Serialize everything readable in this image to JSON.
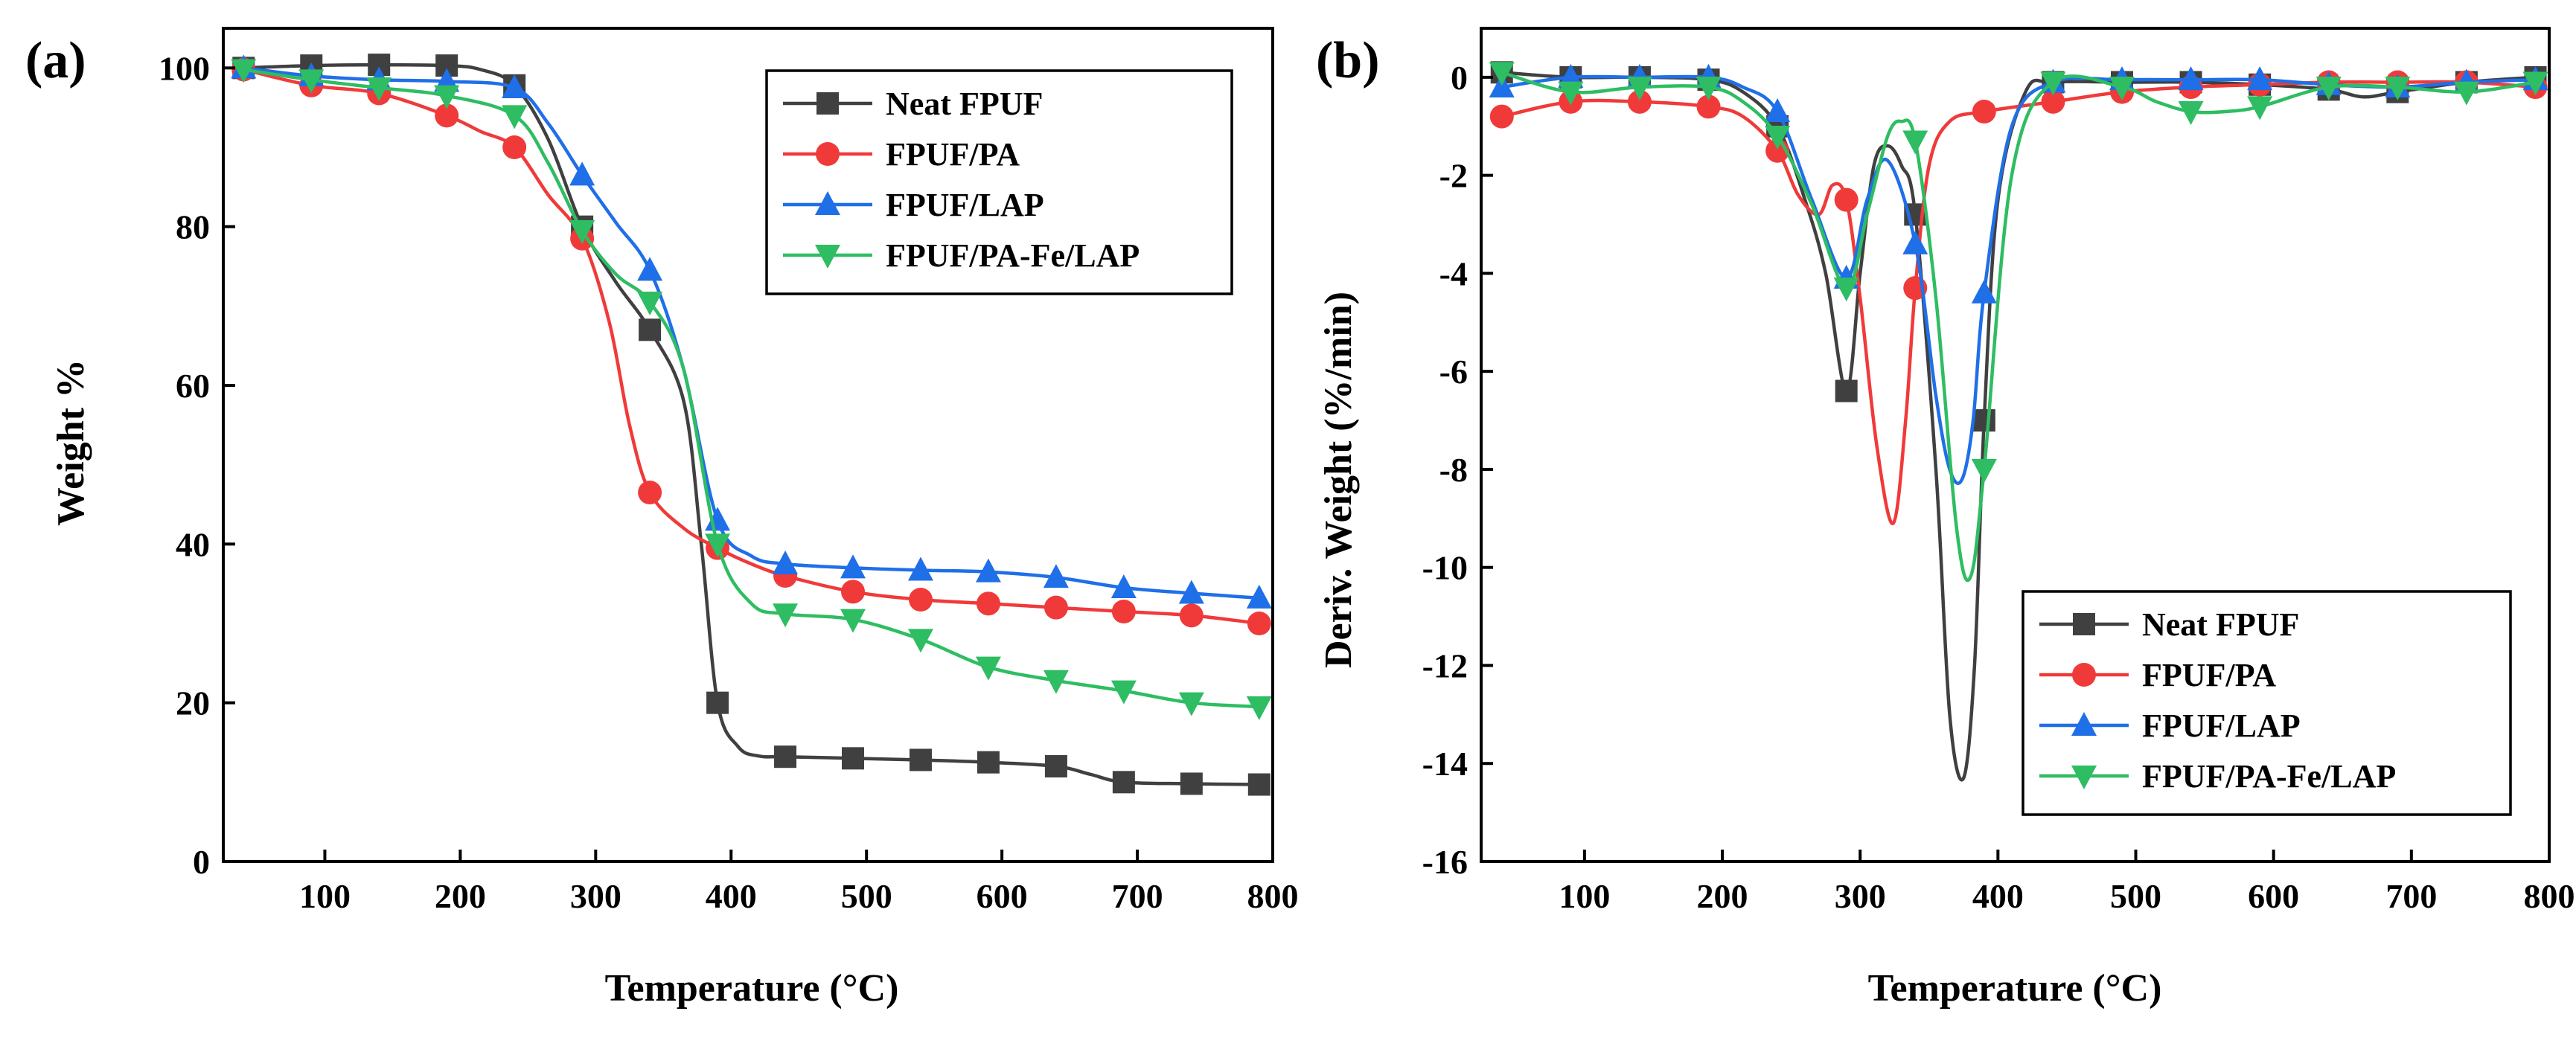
{
  "figure": {
    "colors": {
      "Neat FPUF": "#404040",
      "FPUF/PA": "#f03a3a",
      "FPUF/LAP": "#1f6fe8",
      "FPUF/PA-Fe/LAP": "#2ebd62"
    },
    "markers": {
      "Neat FPUF": "square",
      "FPUF/PA": "circle",
      "FPUF/LAP": "triangle-up",
      "FPUF/PA-Fe/LAP": "triangle-down"
    }
  },
  "chart_data": [
    {
      "type": "line",
      "panel": "(a)",
      "title": "",
      "xlabel": "Temperature (°C)",
      "ylabel": "Weight %",
      "xlim": [
        25,
        800
      ],
      "ylim": [
        0,
        105
      ],
      "xticks": [
        100,
        200,
        300,
        400,
        500,
        600,
        700,
        800
      ],
      "yticks": [
        0,
        20,
        40,
        60,
        80,
        100
      ],
      "legend_position": "top-right",
      "series": [
        {
          "name": "Neat FPUF",
          "x": [
            40,
            90,
            140,
            190,
            215,
            240,
            265,
            290,
            315,
            340,
            365,
            378,
            390,
            405,
            420,
            440,
            490,
            540,
            590,
            640,
            665,
            690,
            740,
            790
          ],
          "y": [
            100,
            100.3,
            100.4,
            100.3,
            99.8,
            97.8,
            91,
            80,
            73,
            67,
            58,
            40,
            20,
            14.5,
            13.3,
            13.2,
            13,
            12.8,
            12.5,
            12,
            11,
            10,
            9.8,
            9.7
          ],
          "markers_x": [
            40,
            90,
            140,
            190,
            240,
            290,
            340,
            390,
            440,
            490,
            540,
            590,
            640,
            690,
            740,
            790
          ],
          "markers_y": [
            100,
            100.3,
            100.4,
            100.3,
            97.8,
            80,
            67,
            20,
            13.2,
            13,
            12.8,
            12.5,
            12,
            10,
            9.8,
            9.7
          ]
        },
        {
          "name": "FPUF/PA",
          "x": [
            40,
            90,
            140,
            190,
            215,
            240,
            265,
            290,
            310,
            325,
            340,
            365,
            390,
            415,
            440,
            490,
            540,
            590,
            640,
            690,
            740,
            790
          ],
          "y": [
            99.8,
            97.8,
            96.8,
            94,
            92,
            90,
            84,
            78.5,
            68,
            55,
            46.5,
            42,
            39.5,
            37.5,
            36,
            34,
            33,
            32.5,
            32,
            31.5,
            31,
            30
          ],
          "markers_x": [
            40,
            90,
            140,
            190,
            240,
            290,
            340,
            390,
            440,
            490,
            540,
            590,
            640,
            690,
            740,
            790
          ],
          "markers_y": [
            99.8,
            97.8,
            96.8,
            94,
            90,
            78.5,
            46.5,
            39.5,
            36,
            34,
            33,
            32.5,
            32,
            31.5,
            31,
            30
          ]
        },
        {
          "name": "FPUF/LAP",
          "x": [
            40,
            90,
            140,
            190,
            240,
            265,
            290,
            315,
            340,
            365,
            390,
            415,
            440,
            490,
            540,
            590,
            640,
            690,
            740,
            790
          ],
          "y": [
            100,
            99,
            98.5,
            98.3,
            97.5,
            93,
            86.5,
            80.5,
            74.5,
            62,
            43,
            38.5,
            37.5,
            37,
            36.7,
            36.5,
            35.8,
            34.5,
            33.8,
            33.2
          ],
          "markers_x": [
            40,
            90,
            140,
            190,
            240,
            290,
            340,
            390,
            440,
            490,
            540,
            590,
            640,
            690,
            740,
            790
          ],
          "markers_y": [
            100,
            99,
            98.5,
            98.3,
            97.5,
            86.5,
            74.5,
            43,
            37.5,
            37,
            36.7,
            36.5,
            35.8,
            34.5,
            33.8,
            33.2
          ]
        },
        {
          "name": "FPUF/PA-Fe/LAP",
          "x": [
            40,
            90,
            140,
            190,
            240,
            265,
            290,
            315,
            340,
            365,
            390,
            415,
            440,
            490,
            540,
            590,
            640,
            690,
            740,
            790
          ],
          "y": [
            99.8,
            98.5,
            97.5,
            96.5,
            94,
            88,
            79.5,
            74,
            70.5,
            62,
            40,
            32.5,
            31.2,
            30.5,
            28,
            24.5,
            22.8,
            21.5,
            20,
            19.5
          ],
          "markers_x": [
            40,
            90,
            140,
            190,
            240,
            290,
            340,
            390,
            440,
            490,
            540,
            590,
            640,
            690,
            740,
            790
          ],
          "markers_y": [
            99.8,
            98.5,
            97.5,
            96.5,
            94,
            79.5,
            70.5,
            40,
            31.2,
            30.5,
            28,
            24.5,
            22.8,
            21.5,
            20,
            19.5
          ]
        }
      ]
    },
    {
      "type": "line",
      "panel": "(b)",
      "title": "",
      "xlabel": "Temperature (°C)",
      "ylabel": "Deriv. Weight (%/min)",
      "xlim": [
        25,
        800
      ],
      "ylim": [
        -16,
        1
      ],
      "xticks": [
        100,
        200,
        300,
        400,
        500,
        600,
        700,
        800
      ],
      "yticks": [
        0,
        -2,
        -4,
        -6,
        -8,
        -10,
        -12,
        -14,
        -16
      ],
      "legend_position": "bottom-right",
      "series": [
        {
          "name": "Neat FPUF",
          "x": [
            40,
            90,
            140,
            190,
            215,
            240,
            260,
            275,
            290,
            300,
            310,
            320,
            330,
            340,
            355,
            365,
            375,
            383,
            390,
            400,
            420,
            440,
            490,
            540,
            590,
            640,
            665,
            690,
            740,
            790
          ],
          "y": [
            0.1,
            0,
            0,
            -0.05,
            -0.3,
            -1,
            -2.5,
            -4,
            -6.4,
            -4,
            -1.8,
            -1.4,
            -1.8,
            -2.8,
            -8,
            -13,
            -14.3,
            -12,
            -7,
            -2.5,
            -0.3,
            -0.1,
            -0.1,
            -0.1,
            -0.15,
            -0.25,
            -0.4,
            -0.3,
            -0.1,
            0
          ],
          "markers_x": [
            40,
            90,
            140,
            190,
            240,
            290,
            340,
            390,
            440,
            490,
            540,
            590,
            640,
            690,
            740,
            790
          ],
          "markers_y": [
            0.1,
            0,
            0,
            -0.05,
            -1,
            -6.4,
            -2.8,
            -7,
            -0.1,
            -0.1,
            -0.1,
            -0.15,
            -0.25,
            -0.3,
            -0.1,
            0
          ]
        },
        {
          "name": "FPUF/PA",
          "x": [
            40,
            90,
            140,
            190,
            215,
            240,
            255,
            270,
            280,
            290,
            300,
            312,
            324,
            333,
            340,
            350,
            365,
            390,
            440,
            490,
            540,
            590,
            640,
            690,
            740,
            790
          ],
          "y": [
            -0.8,
            -0.5,
            -0.5,
            -0.6,
            -0.8,
            -1.5,
            -2.4,
            -2.8,
            -2.2,
            -2.5,
            -4.5,
            -7.5,
            -9.1,
            -7,
            -4.3,
            -1.8,
            -0.9,
            -0.7,
            -0.5,
            -0.3,
            -0.2,
            -0.15,
            -0.1,
            -0.1,
            -0.1,
            -0.2
          ],
          "markers_x": [
            40,
            90,
            140,
            190,
            240,
            290,
            340,
            390,
            440,
            490,
            540,
            590,
            640,
            690,
            740,
            790
          ],
          "markers_y": [
            -0.8,
            -0.5,
            -0.5,
            -0.6,
            -1.5,
            -2.5,
            -4.3,
            -0.7,
            -0.5,
            -0.3,
            -0.2,
            -0.15,
            -0.1,
            -0.1,
            -0.1,
            -0.2
          ]
        },
        {
          "name": "FPUF/LAP",
          "x": [
            40,
            90,
            140,
            190,
            215,
            240,
            265,
            290,
            305,
            320,
            340,
            355,
            365,
            374,
            382,
            390,
            410,
            440,
            490,
            540,
            590,
            640,
            690,
            740,
            790
          ],
          "y": [
            -0.2,
            0,
            0,
            0,
            -0.2,
            -0.7,
            -2.5,
            -4.1,
            -2.5,
            -1.7,
            -3.4,
            -6.5,
            -8,
            -8.2,
            -7,
            -4.4,
            -1,
            -0.1,
            -0.05,
            -0.05,
            -0.05,
            -0.15,
            -0.2,
            -0.1,
            -0.05
          ],
          "markers_x": [
            40,
            90,
            140,
            190,
            240,
            290,
            340,
            390,
            440,
            490,
            540,
            590,
            640,
            690,
            740,
            790
          ],
          "markers_y": [
            -0.2,
            0,
            0,
            0,
            -0.7,
            -4.1,
            -3.4,
            -4.4,
            -0.1,
            -0.05,
            -0.05,
            -0.05,
            -0.15,
            -0.2,
            -0.1,
            -0.05
          ]
        },
        {
          "name": "FPUF/PA-Fe/LAP",
          "x": [
            40,
            90,
            140,
            190,
            215,
            240,
            265,
            290,
            305,
            320,
            330,
            340,
            355,
            370,
            380,
            390,
            410,
            440,
            490,
            515,
            540,
            565,
            590,
            640,
            690,
            740,
            790
          ],
          "y": [
            0.1,
            -0.3,
            -0.2,
            -0.2,
            -0.5,
            -1.2,
            -2.6,
            -4.3,
            -2.8,
            -1.2,
            -0.9,
            -1.3,
            -4.5,
            -9.2,
            -10.2,
            -8,
            -2,
            -0.1,
            -0.2,
            -0.5,
            -0.7,
            -0.7,
            -0.6,
            -0.2,
            -0.2,
            -0.3,
            -0.1
          ],
          "markers_x": [
            40,
            90,
            140,
            190,
            240,
            290,
            340,
            390,
            440,
            490,
            540,
            590,
            640,
            690,
            740,
            790
          ],
          "markers_y": [
            0.1,
            -0.3,
            -0.2,
            -0.2,
            -1.2,
            -4.3,
            -1.3,
            -8,
            -0.1,
            -0.2,
            -0.7,
            -0.6,
            -0.2,
            -0.2,
            -0.3,
            -0.1
          ]
        }
      ]
    }
  ]
}
